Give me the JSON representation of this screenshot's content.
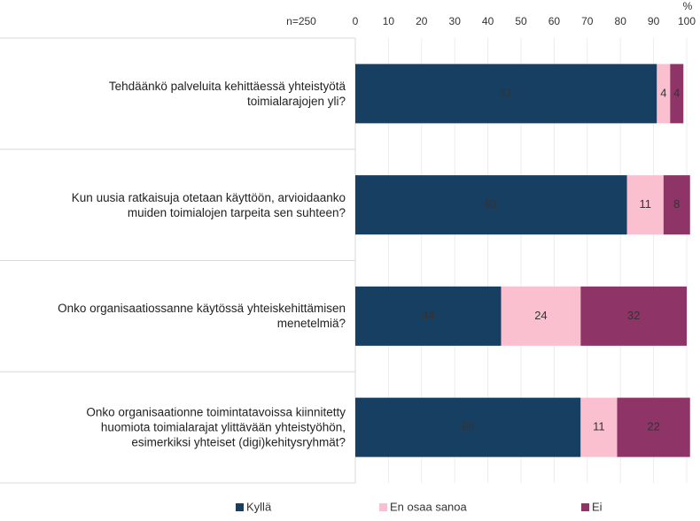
{
  "chart_data": {
    "type": "stacked-barh",
    "annotation": "n=250",
    "axis_unit": "%",
    "categories": [
      "Tehdäänkö palveluita kehittäessä yhteistyötä\ntoimialarajojen yli?",
      "Kun uusia ratkaisuja otetaan käyttöön, arvioidaanko\nmuiden toimialojen tarpeita sen suhteen?",
      "Onko organisaatiossanne käytössä yhteiskehittämisen\nmenetelmiä?",
      "Onko organisaationne toimintatavoissa kiinnitetty\nhuomiota toimialarajat ylittävään yhteistyöhön,\nesimerkiksi yhteiset (digi)kehitysryhmät?"
    ],
    "series": [
      {
        "name": "Kyllä",
        "color": "#173f62",
        "label_color": "#ffffff",
        "values": [
          91,
          82,
          44,
          68
        ]
      },
      {
        "name": "En osaa sanoa",
        "color": "#fbc0d0",
        "label_color": "#333333",
        "values": [
          4,
          11,
          24,
          11
        ]
      },
      {
        "name": "Ei",
        "color": "#8f3467",
        "label_color": "#ffffff",
        "values": [
          4,
          8,
          32,
          22
        ]
      }
    ],
    "xlim": [
      0,
      100
    ],
    "xticks": [
      0,
      10,
      20,
      30,
      40,
      50,
      60,
      70,
      80,
      90,
      100
    ],
    "grid": true,
    "legend": "bottom"
  }
}
